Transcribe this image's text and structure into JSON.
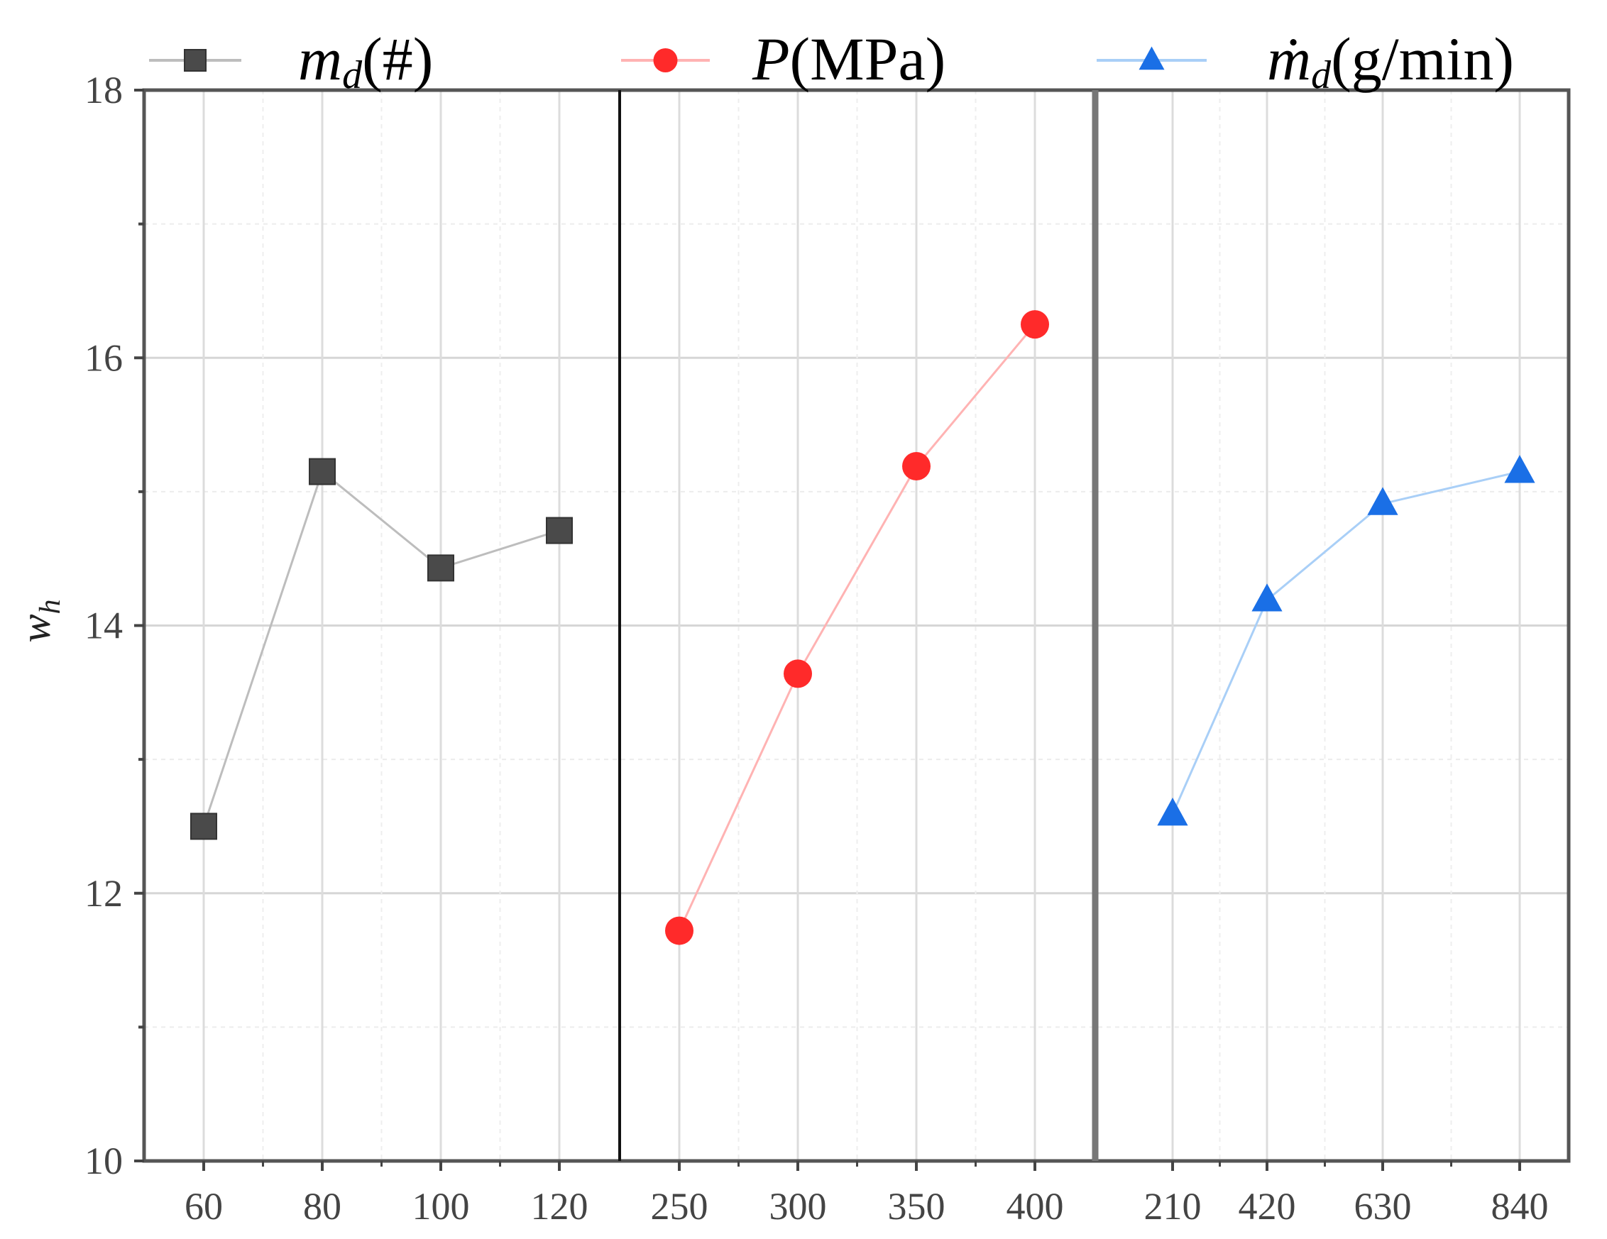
{
  "chart_data": {
    "type": "line",
    "ylabel": "w_h",
    "ylim": [
      10,
      18
    ],
    "yticks": [
      10,
      12,
      14,
      16,
      18
    ],
    "grid": true,
    "panels": [
      {
        "series_name": "m_d(#)",
        "color": "#4a4a4a",
        "marker": "square",
        "categories": [
          "60",
          "80",
          "100",
          "120"
        ],
        "values": [
          12.5,
          15.15,
          14.43,
          14.71
        ]
      },
      {
        "series_name": "P(MPa)",
        "color": "#ff2a2a",
        "marker": "circle",
        "categories": [
          "250",
          "300",
          "350",
          "400"
        ],
        "values": [
          11.72,
          13.64,
          15.19,
          16.25
        ]
      },
      {
        "series_name": "ṁ_d(g/min)",
        "color": "#1a6fe6",
        "marker": "triangle",
        "categories": [
          "210",
          "420",
          "630",
          "840"
        ],
        "values": [
          12.59,
          14.19,
          14.91,
          15.15
        ]
      }
    ],
    "legend": {
      "placement": "top",
      "entries": [
        {
          "main": "m",
          "sub": "d",
          "rest": "(#)"
        },
        {
          "main": "P",
          "sub": "",
          "rest": "(MPa)"
        },
        {
          "main": "ṁ",
          "sub": "d",
          "rest": "(g/min)"
        }
      ]
    },
    "ylabel_main": "w",
    "ylabel_sub": "h"
  }
}
